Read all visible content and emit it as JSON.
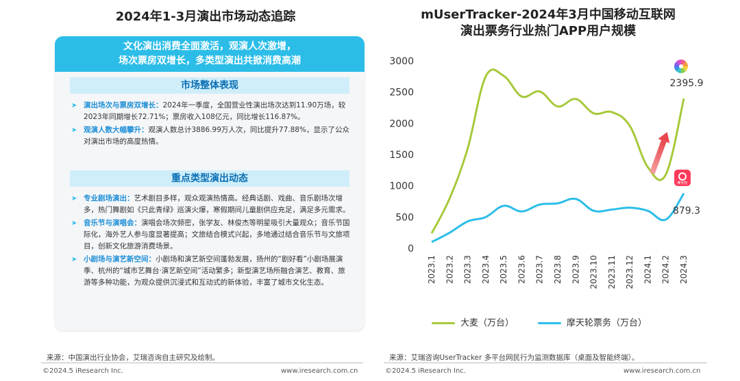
{
  "left": {
    "title": "2024年1-3月演出市场动态追踪",
    "banner_line1": "文化演出消费全面激活，观演人次激增，",
    "banner_line2": "场次票房双增长，多类型演出共掀消费高潮",
    "section1_title": "市场整体表现",
    "section1_items": [
      {
        "kw": "演出场次与票房双增长：",
        "text": "2024年一季度，全国营业性演出场次达到11.90万场，较2023年同期增长72.71%；票房收入108亿元，同比增长116.87%。"
      },
      {
        "kw": "观演人数大幅攀升：",
        "text": "观演人数总计3886.99万人次，同比提升77.88%，显示了公众对演出市场的高度热情。"
      }
    ],
    "section2_title": "重点类型演出动态",
    "section2_items": [
      {
        "kw": "专业剧场演出：",
        "text": "艺术剧目多样，观众观演热情高。经典话剧、戏曲、音乐剧场次增多，热门舞剧如《只此青绿》巡演火爆，寒假期间儿童剧供应充足，满足多元需求。"
      },
      {
        "kw": "音乐节与演唱会：",
        "text": "演唱会场次频密，张学友、林俊杰等明星吸引大量观众；音乐节国际化，海外艺人参与度显著提高；文旅结合模式兴起，多地通过结合音乐节与文旅项目，创新文化旅游消费场景。"
      },
      {
        "kw": "小剧场与演艺新空间：",
        "text": "小剧场和演艺新空间蓬勃发展，扬州的“剧好看”小剧场展演季、杭州的“城市艺舞台·演艺新空间”活动繁多；新型演艺场所融合演艺、教育、旅游等多种功能，为观众提供沉浸式和互动式的新体验，丰富了城市文化生态。"
      }
    ],
    "source": "来源：中国演出行业协会，艾瑞咨询自主研究及绘制。",
    "copyright": "©2024.5 iResearch Inc.",
    "website": "www.iresearch.com.cn"
  },
  "right": {
    "title_line1": "mUserTracker-2024年3月中国移动互联网",
    "title_line2": "演出票务行业热门APP用户规模",
    "source": "来源：艾瑞咨询UserTracker 多平台网民行为监测数据库（桌面及智能终端）。",
    "copyright": "©2024.5 iResearch Inc.",
    "website": "www.iresearch.com.cn",
    "app_icon2_text": "摩天轮"
  },
  "chart_data": {
    "type": "line",
    "categories": [
      "2023.1",
      "2023.2",
      "2023.3",
      "2023.4",
      "2023.5",
      "2023.6",
      "2023.7",
      "2023.8",
      "2023.9",
      "2023.10",
      "2023.11",
      "2023.12",
      "2024.1",
      "2024.2",
      "2024.3"
    ],
    "ylim": [
      0,
      3000
    ],
    "yticks": [
      0,
      500,
      1000,
      1500,
      2000,
      2500,
      3000
    ],
    "series": [
      {
        "name": "大麦（万台）",
        "color": "#a6c93a",
        "values": [
          240,
          800,
          1600,
          2750,
          2760,
          2430,
          2510,
          2270,
          2390,
          2160,
          2180,
          1960,
          1300,
          1180,
          2395.9
        ],
        "end_label": "2395.9"
      },
      {
        "name": "摩天轮票务（万台）",
        "color": "#2bbde8",
        "values": [
          100,
          250,
          430,
          500,
          680,
          590,
          700,
          720,
          790,
          600,
          620,
          650,
          600,
          460,
          879.3
        ],
        "end_label": "879.3"
      }
    ],
    "grid": false,
    "legend_position": "bottom"
  }
}
